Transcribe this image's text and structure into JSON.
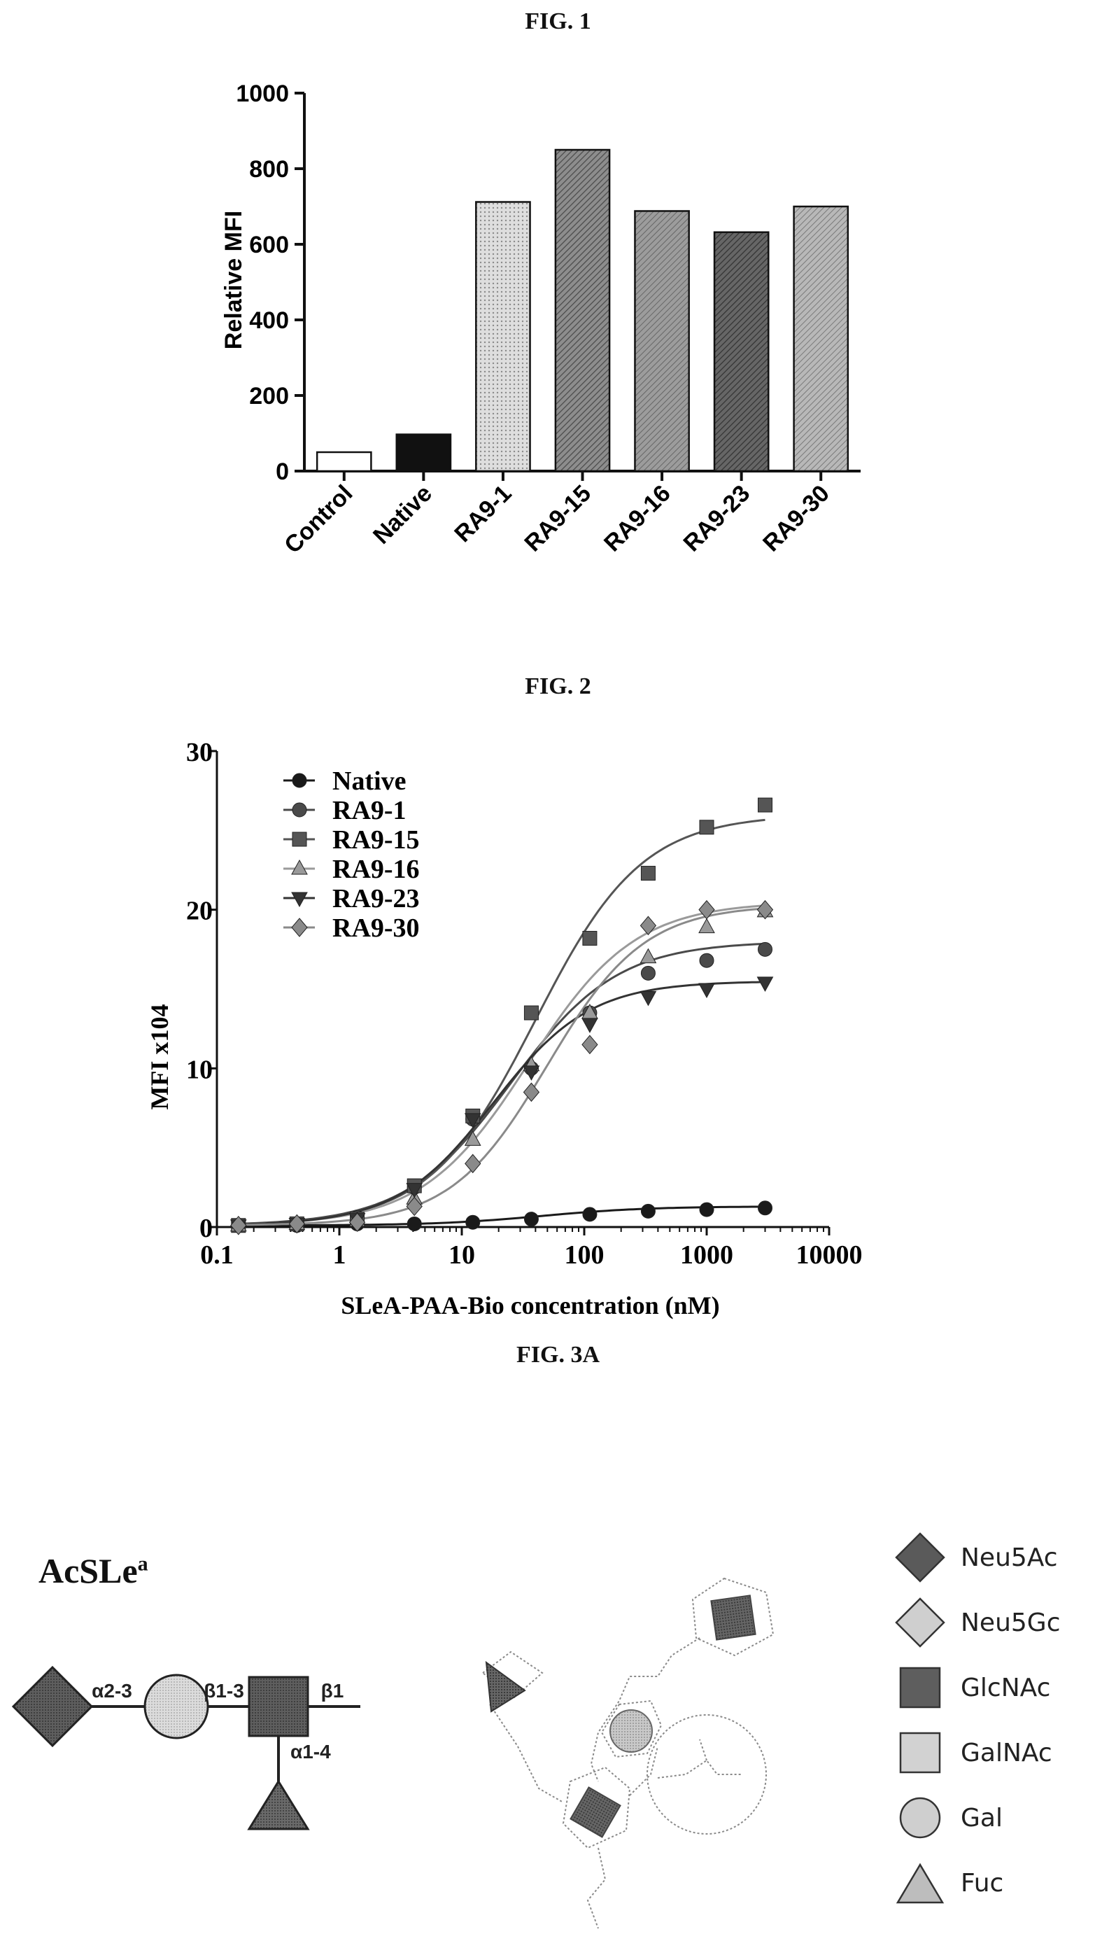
{
  "figures": {
    "fig1_title": "FIG. 1",
    "fig2_title": "FIG. 2",
    "fig3a_title": "FIG. 3A"
  },
  "chart_data": [
    {
      "type": "bar",
      "title": "",
      "xlabel": "",
      "ylabel": "Relative MFI",
      "ylim": [
        0,
        1000
      ],
      "yticks": [
        "0",
        "200",
        "400",
        "600",
        "800",
        "1000"
      ],
      "categories": [
        "Control",
        "Native",
        "RA9-1",
        "RA9-15",
        "RA9-16",
        "RA9-23",
        "RA9-30"
      ],
      "values": [
        50,
        97,
        712,
        850,
        688,
        632,
        700
      ],
      "bar_styles": [
        "white",
        "black",
        "light-dots",
        "dense-hatch",
        "medium-hatch",
        "dark-hatch",
        "light-hatch"
      ],
      "grid": false
    },
    {
      "type": "scatter",
      "title": "",
      "xlabel": "SLeA-PAA-Bio concentration (nM)",
      "ylabel": "MFI x104",
      "xscale": "log",
      "xlim": [
        0.1,
        10000
      ],
      "ylim": [
        0,
        30
      ],
      "xticks": [
        "0.1",
        "1",
        "10",
        "100",
        "1000",
        "10000"
      ],
      "yticks": [
        "0",
        "10",
        "20",
        "30"
      ],
      "legend_position": "top-left",
      "x": [
        0.15,
        0.45,
        1.4,
        4.1,
        12.3,
        37,
        111,
        333,
        1000,
        3000
      ],
      "series": [
        {
          "name": "Native",
          "marker": "circle",
          "color": "#1a1a1a",
          "values": [
            0.1,
            0.1,
            0.2,
            0.2,
            0.3,
            0.5,
            0.8,
            1.0,
            1.1,
            1.2
          ]
        },
        {
          "name": "RA9-1",
          "marker": "circle",
          "color": "#4a4a4a",
          "values": [
            0.1,
            0.2,
            0.6,
            2.5,
            6.8,
            10.0,
            13.5,
            16.0,
            16.8,
            17.5
          ]
        },
        {
          "name": "RA9-15",
          "marker": "square",
          "color": "#555555",
          "values": [
            0.1,
            0.2,
            0.5,
            2.6,
            7.0,
            13.5,
            18.2,
            22.3,
            25.2,
            26.6
          ]
        },
        {
          "name": "RA9-16",
          "marker": "triangle-up",
          "color": "#9a9a9a",
          "values": [
            0.1,
            0.2,
            0.4,
            1.8,
            5.5,
            10.2,
            13.5,
            17.0,
            18.9,
            19.9
          ]
        },
        {
          "name": "RA9-23",
          "marker": "triangle-down",
          "color": "#333333",
          "values": [
            0.1,
            0.2,
            0.5,
            2.4,
            6.8,
            9.8,
            12.8,
            14.5,
            15.0,
            15.4
          ]
        },
        {
          "name": "RA9-30",
          "marker": "diamond",
          "color": "#8a8a8a",
          "values": [
            0.1,
            0.2,
            0.3,
            1.3,
            4.0,
            8.5,
            11.5,
            19.0,
            20.0,
            20.0
          ]
        }
      ],
      "fit_curves": [
        {
          "series": "Native",
          "bottom": 0.1,
          "top": 1.3,
          "ec50": 45,
          "hill": 1.0
        },
        {
          "series": "RA9-1",
          "bottom": 0.1,
          "top": 18.0,
          "ec50": 25,
          "hill": 1.0
        },
        {
          "series": "RA9-15",
          "bottom": 0.1,
          "top": 26.0,
          "ec50": 40,
          "hill": 1.0
        },
        {
          "series": "RA9-16",
          "bottom": 0.1,
          "top": 20.5,
          "ec50": 35,
          "hill": 1.0
        },
        {
          "series": "RA9-23",
          "bottom": 0.1,
          "top": 15.5,
          "ec50": 18,
          "hill": 1.1
        },
        {
          "series": "RA9-30",
          "bottom": 0.1,
          "top": 20.3,
          "ec50": 50,
          "hill": 1.1
        }
      ]
    }
  ],
  "fig3a": {
    "structure_label": "AcSLe",
    "structure_sup": "a",
    "linkages": {
      "a23": "α2-3",
      "b13": "β1-3",
      "b1": "β1",
      "a14": "α1-4"
    },
    "legend": [
      {
        "name": "Neu5Ac",
        "shape": "diamond",
        "fill": "#5a5a5a"
      },
      {
        "name": "Neu5Gc",
        "shape": "diamond",
        "fill": "#cfcfcf"
      },
      {
        "name": "GlcNAc",
        "shape": "square",
        "fill": "#5e5e5e"
      },
      {
        "name": "GalNAc",
        "shape": "square",
        "fill": "#d2d2d2"
      },
      {
        "name": "Gal",
        "shape": "circle",
        "fill": "#cfcfcf"
      },
      {
        "name": "Fuc",
        "shape": "triangle",
        "fill": "#bdbdbd"
      }
    ]
  }
}
